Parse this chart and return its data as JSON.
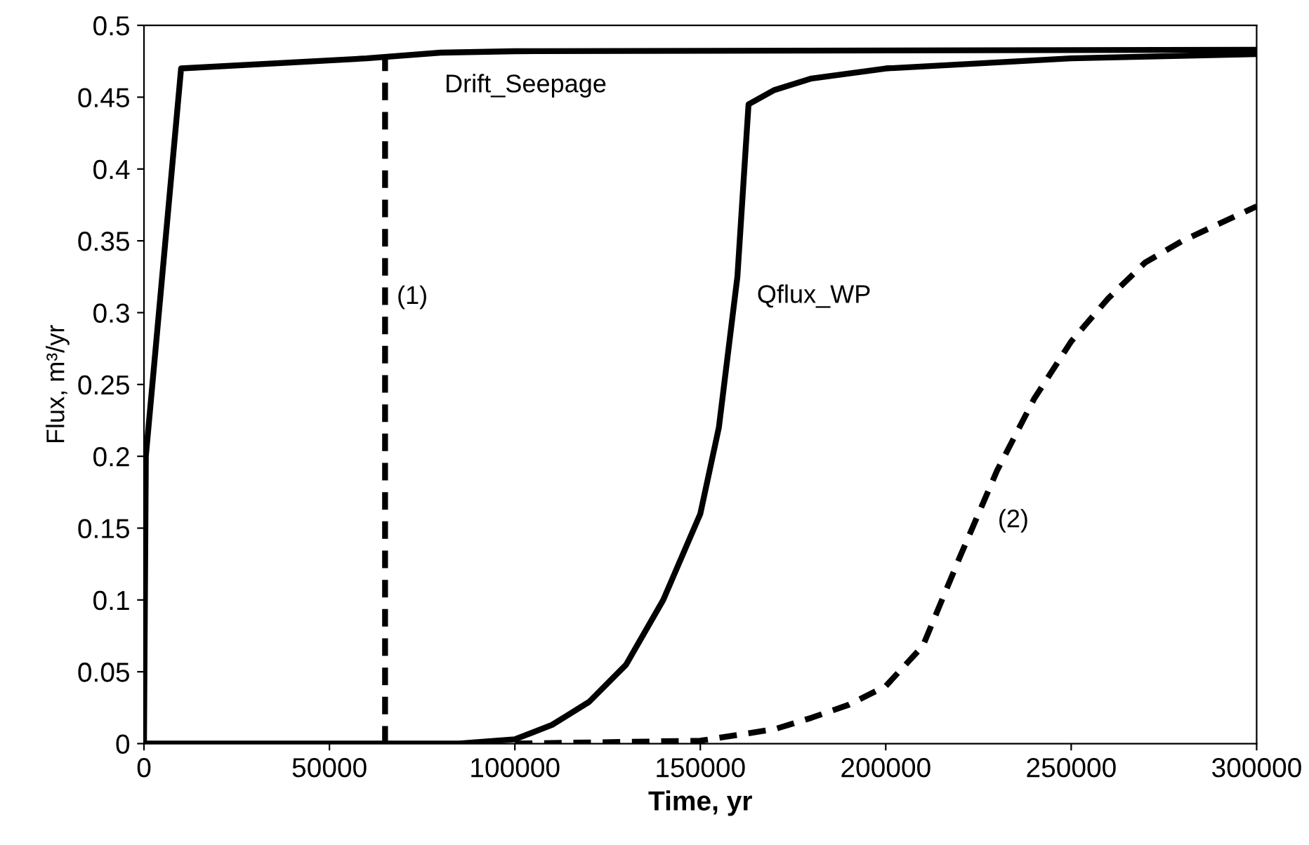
{
  "chart_data": {
    "type": "line",
    "xlabel": "Time, yr",
    "ylabel": "Flux, m³/yr",
    "xlim": [
      0,
      300000
    ],
    "xticks": [
      0,
      50000,
      100000,
      150000,
      200000,
      250000,
      300000
    ],
    "ylim": [
      0,
      0.5
    ],
    "yticks": [
      0,
      0.05,
      0.1,
      0.15,
      0.2,
      0.25,
      0.3,
      0.35,
      0.4,
      0.45,
      0.5
    ],
    "grid": false,
    "marker": "none",
    "series": [
      {
        "name": "Drift_Seepage",
        "color": "#000000",
        "line_style": "solid",
        "x": [
          0,
          500,
          10000,
          60000,
          80000,
          100000,
          300000
        ],
        "values": [
          0,
          0.2,
          0.47,
          0.477,
          0.481,
          0.482,
          0.483
        ]
      },
      {
        "name": "Qflux_WP",
        "color": "#000000",
        "line_style": "solid",
        "x": [
          0,
          85000,
          100000,
          110000,
          120000,
          130000,
          140000,
          150000,
          155000,
          160000,
          163000,
          170000,
          180000,
          200000,
          250000,
          300000
        ],
        "values": [
          0,
          0,
          0.003,
          0.013,
          0.029,
          0.055,
          0.1,
          0.16,
          0.22,
          0.325,
          0.445,
          0.455,
          0.463,
          0.47,
          0.477,
          0.48
        ]
      },
      {
        "name": "(1)",
        "color": "#000000",
        "line_style": "dashed",
        "x": [
          65000,
          65000
        ],
        "values": [
          0,
          0.478
        ]
      },
      {
        "name": "(2)",
        "color": "#000000",
        "line_style": "dashed",
        "x": [
          100000,
          150000,
          170000,
          180000,
          190000,
          200000,
          210000,
          220000,
          230000,
          240000,
          250000,
          260000,
          270000,
          280000,
          290000,
          300000
        ],
        "values": [
          0,
          0.002,
          0.01,
          0.018,
          0.027,
          0.04,
          0.068,
          0.13,
          0.19,
          0.24,
          0.28,
          0.31,
          0.335,
          0.35,
          0.362,
          0.374
        ]
      }
    ]
  }
}
